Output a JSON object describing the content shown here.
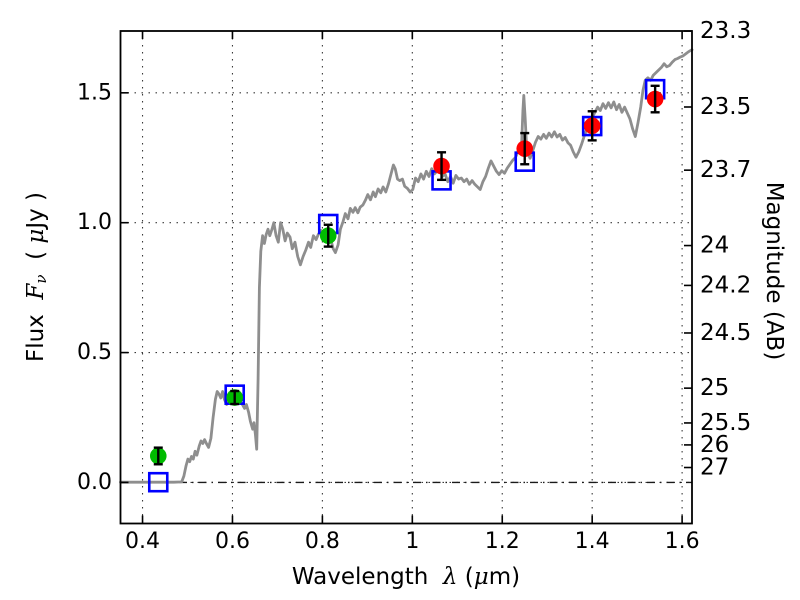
{
  "chart_data": {
    "type": "line",
    "title": "",
    "xlabel": "Wavelength λ (μm)",
    "xlabel_parts": {
      "word": "Wavelength  ",
      "lambda": "λ",
      "open": " (",
      "mu": "μ",
      "close": "m)"
    },
    "ylabel": "Flux Fν ( μJy )",
    "ylabel_parts": {
      "flux": "Flux  ",
      "F": "F",
      "nu": "ν",
      "units_open": "  ( ",
      "mu": "μ",
      "units_close": "Jy )"
    },
    "y2label": "Magnitude (AB)",
    "xlim": [
      0.351,
      1.622
    ],
    "ylim": [
      -0.158,
      1.738
    ],
    "grid": true,
    "legend": "none",
    "ab_zeropoint_uJy_mag": 23.9,
    "zero_flux_line": {
      "y": 0.0,
      "style": "dash-dot"
    },
    "x_ticks": {
      "values": [
        0.4,
        0.6,
        0.8,
        1.0,
        1.2,
        1.4,
        1.6
      ],
      "labels": [
        "0.4",
        "0.6",
        "0.8",
        "1",
        "1.2",
        "1.4",
        "1.6"
      ]
    },
    "y_ticks": {
      "values": [
        0.0,
        0.5,
        1.0,
        1.5
      ],
      "labels": [
        "0.0",
        "0.5",
        "1.0",
        "1.5"
      ]
    },
    "y2_ticks": {
      "values": [
        23.3,
        23.5,
        23.7,
        24.0,
        24.2,
        24.5,
        25.0,
        25.5,
        26.0,
        27.0
      ],
      "labels": [
        "23.3",
        "23.5",
        "23.7",
        "24",
        "24.2",
        "24.5",
        "25",
        "25.5",
        "26",
        "27"
      ]
    },
    "colors": {
      "spectrum": "#8e8e8e",
      "model_square": "#0000ff",
      "observed_green": "#00bb00",
      "observed_red": "#ff0000",
      "errorbar": "#000000",
      "grid": "#3a3a3a",
      "spine": "#000000"
    },
    "series": [
      {
        "name": "model-spectrum",
        "type": "line",
        "points": [
          [
            0.351,
            0.001
          ],
          [
            0.38,
            0.001
          ],
          [
            0.41,
            0.001
          ],
          [
            0.44,
            0.001
          ],
          [
            0.47,
            0.001
          ],
          [
            0.487,
            0.002
          ],
          [
            0.492,
            0.025
          ],
          [
            0.497,
            0.065
          ],
          [
            0.501,
            0.09
          ],
          [
            0.505,
            0.08
          ],
          [
            0.509,
            0.1
          ],
          [
            0.513,
            0.09
          ],
          [
            0.517,
            0.12
          ],
          [
            0.521,
            0.105
          ],
          [
            0.526,
            0.14
          ],
          [
            0.53,
            0.16
          ],
          [
            0.534,
            0.15
          ],
          [
            0.538,
            0.165
          ],
          [
            0.542,
            0.15
          ],
          [
            0.547,
            0.135
          ],
          [
            0.552,
            0.17
          ],
          [
            0.557,
            0.25
          ],
          [
            0.562,
            0.32
          ],
          [
            0.566,
            0.35
          ],
          [
            0.57,
            0.34
          ],
          [
            0.574,
            0.325
          ],
          [
            0.578,
            0.35
          ],
          [
            0.582,
            0.32
          ],
          [
            0.587,
            0.3
          ],
          [
            0.592,
            0.315
          ],
          [
            0.597,
            0.33
          ],
          [
            0.602,
            0.335
          ],
          [
            0.607,
            0.32
          ],
          [
            0.612,
            0.33
          ],
          [
            0.617,
            0.31
          ],
          [
            0.622,
            0.3
          ],
          [
            0.627,
            0.285
          ],
          [
            0.631,
            0.3
          ],
          [
            0.636,
            0.27
          ],
          [
            0.64,
            0.235
          ],
          [
            0.645,
            0.205
          ],
          [
            0.648,
            0.23
          ],
          [
            0.651,
            0.185
          ],
          [
            0.654,
            0.128
          ],
          [
            0.657,
            0.4
          ],
          [
            0.66,
            0.75
          ],
          [
            0.663,
            0.89
          ],
          [
            0.667,
            0.95
          ],
          [
            0.671,
            0.92
          ],
          [
            0.675,
            0.955
          ],
          [
            0.679,
            0.975
          ],
          [
            0.683,
            0.95
          ],
          [
            0.688,
            0.975
          ],
          [
            0.692,
            1.0
          ],
          [
            0.697,
            0.95
          ],
          [
            0.702,
            0.925
          ],
          [
            0.707,
            1.0
          ],
          [
            0.712,
            0.975
          ],
          [
            0.717,
            0.93
          ],
          [
            0.722,
            0.96
          ],
          [
            0.728,
            0.945
          ],
          [
            0.733,
            0.9
          ],
          [
            0.739,
            0.925
          ],
          [
            0.745,
            0.87
          ],
          [
            0.751,
            0.838
          ],
          [
            0.757,
            0.87
          ],
          [
            0.763,
            0.895
          ],
          [
            0.769,
            0.925
          ],
          [
            0.774,
            0.905
          ],
          [
            0.78,
            0.95
          ],
          [
            0.786,
            0.935
          ],
          [
            0.791,
            0.955
          ],
          [
            0.797,
            0.97
          ],
          [
            0.802,
            0.96
          ],
          [
            0.808,
            0.945
          ],
          [
            0.813,
            0.955
          ],
          [
            0.818,
            0.94
          ],
          [
            0.824,
            0.9
          ],
          [
            0.829,
            0.885
          ],
          [
            0.835,
            0.915
          ],
          [
            0.84,
            0.975
          ],
          [
            0.846,
            1.005
          ],
          [
            0.851,
            1.035
          ],
          [
            0.857,
            1.015
          ],
          [
            0.862,
            1.055
          ],
          [
            0.868,
            1.04
          ],
          [
            0.873,
            1.058
          ],
          [
            0.879,
            1.038
          ],
          [
            0.884,
            1.06
          ],
          [
            0.89,
            1.068
          ],
          [
            0.896,
            1.088
          ],
          [
            0.901,
            1.108
          ],
          [
            0.907,
            1.088
          ],
          [
            0.913,
            1.118
          ],
          [
            0.918,
            1.1
          ],
          [
            0.924,
            1.13
          ],
          [
            0.93,
            1.115
          ],
          [
            0.935,
            1.138
          ],
          [
            0.941,
            1.118
          ],
          [
            0.947,
            1.15
          ],
          [
            0.953,
            1.19
          ],
          [
            0.958,
            1.222
          ],
          [
            0.962,
            1.208
          ],
          [
            0.967,
            1.168
          ],
          [
            0.972,
            1.162
          ],
          [
            0.978,
            1.168
          ],
          [
            0.983,
            1.14
          ],
          [
            0.989,
            1.132
          ],
          [
            0.995,
            1.118
          ],
          [
            1.001,
            1.128
          ],
          [
            1.007,
            1.172
          ],
          [
            1.013,
            1.158
          ],
          [
            1.019,
            1.188
          ],
          [
            1.025,
            1.168
          ],
          [
            1.031,
            1.198
          ],
          [
            1.037,
            1.178
          ],
          [
            1.043,
            1.208
          ],
          [
            1.049,
            1.188
          ],
          [
            1.055,
            1.198
          ],
          [
            1.061,
            1.208
          ],
          [
            1.067,
            1.178
          ],
          [
            1.073,
            1.188
          ],
          [
            1.079,
            1.158
          ],
          [
            1.085,
            1.178
          ],
          [
            1.091,
            1.152
          ],
          [
            1.097,
            1.182
          ],
          [
            1.103,
            1.168
          ],
          [
            1.109,
            1.172
          ],
          [
            1.115,
            1.158
          ],
          [
            1.121,
            1.168
          ],
          [
            1.127,
            1.148
          ],
          [
            1.133,
            1.162
          ],
          [
            1.139,
            1.148
          ],
          [
            1.145,
            1.138
          ],
          [
            1.151,
            1.128
          ],
          [
            1.157,
            1.158
          ],
          [
            1.163,
            1.178
          ],
          [
            1.169,
            1.21
          ],
          [
            1.175,
            1.238
          ],
          [
            1.181,
            1.218
          ],
          [
            1.187,
            1.198
          ],
          [
            1.193,
            1.185
          ],
          [
            1.199,
            1.2
          ],
          [
            1.205,
            1.19
          ],
          [
            1.211,
            1.21
          ],
          [
            1.217,
            1.225
          ],
          [
            1.223,
            1.24
          ],
          [
            1.229,
            1.25
          ],
          [
            1.234,
            1.27
          ],
          [
            1.239,
            1.295
          ],
          [
            1.243,
            1.3
          ],
          [
            1.246,
            1.43
          ],
          [
            1.248,
            1.49
          ],
          [
            1.251,
            1.4
          ],
          [
            1.254,
            1.3
          ],
          [
            1.257,
            1.265
          ],
          [
            1.262,
            1.248
          ],
          [
            1.268,
            1.278
          ],
          [
            1.274,
            1.31
          ],
          [
            1.28,
            1.332
          ],
          [
            1.286,
            1.322
          ],
          [
            1.292,
            1.34
          ],
          [
            1.298,
            1.325
          ],
          [
            1.304,
            1.345
          ],
          [
            1.31,
            1.33
          ],
          [
            1.316,
            1.35
          ],
          [
            1.322,
            1.33
          ],
          [
            1.328,
            1.34
          ],
          [
            1.334,
            1.318
          ],
          [
            1.34,
            1.328
          ],
          [
            1.346,
            1.308
          ],
          [
            1.352,
            1.298
          ],
          [
            1.358,
            1.272
          ],
          [
            1.364,
            1.252
          ],
          [
            1.37,
            1.272
          ],
          [
            1.376,
            1.3
          ],
          [
            1.382,
            1.332
          ],
          [
            1.388,
            1.36
          ],
          [
            1.394,
            1.385
          ],
          [
            1.4,
            1.405
          ],
          [
            1.406,
            1.425
          ],
          [
            1.412,
            1.445
          ],
          [
            1.418,
            1.432
          ],
          [
            1.424,
            1.458
          ],
          [
            1.43,
            1.44
          ],
          [
            1.436,
            1.462
          ],
          [
            1.442,
            1.442
          ],
          [
            1.448,
            1.465
          ],
          [
            1.454,
            1.435
          ],
          [
            1.46,
            1.455
          ],
          [
            1.466,
            1.425
          ],
          [
            1.472,
            1.445
          ],
          [
            1.478,
            1.422
          ],
          [
            1.484,
            1.4
          ],
          [
            1.49,
            1.362
          ],
          [
            1.496,
            1.332
          ],
          [
            1.502,
            1.385
          ],
          [
            1.508,
            1.445
          ],
          [
            1.513,
            1.51
          ],
          [
            1.518,
            1.548
          ],
          [
            1.524,
            1.558
          ],
          [
            1.53,
            1.548
          ],
          [
            1.536,
            1.568
          ],
          [
            1.542,
            1.578
          ],
          [
            1.548,
            1.588
          ],
          [
            1.554,
            1.598
          ],
          [
            1.56,
            1.612
          ],
          [
            1.566,
            1.6
          ],
          [
            1.572,
            1.605
          ],
          [
            1.578,
            1.618
          ],
          [
            1.584,
            1.628
          ],
          [
            1.59,
            1.632
          ],
          [
            1.596,
            1.638
          ],
          [
            1.602,
            1.642
          ],
          [
            1.608,
            1.65
          ],
          [
            1.614,
            1.658
          ],
          [
            1.62,
            1.664
          ],
          [
            1.622,
            1.666
          ]
        ]
      },
      {
        "name": "model-photometry",
        "type": "scatter",
        "marker": "open-square",
        "points": [
          {
            "x": 0.435,
            "y": 0.001
          },
          {
            "x": 0.605,
            "y": 0.338
          },
          {
            "x": 0.813,
            "y": 0.995
          },
          {
            "x": 1.065,
            "y": 1.163
          },
          {
            "x": 1.25,
            "y": 1.235
          },
          {
            "x": 1.4,
            "y": 1.372
          },
          {
            "x": 1.54,
            "y": 1.514
          }
        ]
      },
      {
        "name": "observed-photometry-green",
        "type": "scatter",
        "marker": "circle",
        "points": [
          {
            "x": 0.435,
            "y": 0.102,
            "yerr": 0.032
          },
          {
            "x": 0.605,
            "y": 0.327,
            "yerr": 0.025
          },
          {
            "x": 0.813,
            "y": 0.95,
            "yerr": 0.042
          }
        ]
      },
      {
        "name": "observed-photometry-red",
        "type": "scatter",
        "marker": "circle",
        "points": [
          {
            "x": 1.065,
            "y": 1.218,
            "yerr": 0.053
          },
          {
            "x": 1.25,
            "y": 1.285,
            "yerr": 0.06
          },
          {
            "x": 1.4,
            "y": 1.373,
            "yerr": 0.056
          },
          {
            "x": 1.54,
            "y": 1.476,
            "yerr": 0.051
          }
        ]
      }
    ]
  }
}
